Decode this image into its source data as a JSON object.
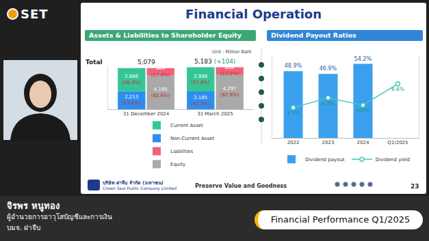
{
  "page": {
    "logo": "SET",
    "slide_title": "Financial Operation",
    "company_th": "บริษัท ฝาจีบ จำกัด (มหาชน)",
    "company_en": "Crown Seal Public Company Limited",
    "slogan": "Preserve Value and Goodness",
    "page_number": "23",
    "presenter_name": "จิรพร หนูทอง",
    "presenter_title": "ผู้อำนวยการอาวุโสบัญชีและการเงิน",
    "presenter_company": "บมจ. ฝาจีบ",
    "session": "Financial Performance Q1/2025"
  },
  "chart_data": [
    {
      "type": "bar",
      "title": "Assets & Liabilities to Shareholder Equity",
      "unit": "Unit : Million Baht",
      "total_label": "Total",
      "totals": [
        5079,
        5183
      ],
      "total_labels": [
        "5,079",
        "5,183"
      ],
      "change_label": "(+104)",
      "categories": [
        "31 December 2024",
        "31 March 2025"
      ],
      "stacks": [
        [
          {
            "name": "Current Asset",
            "color": "#36c597",
            "values": [
              2866,
              2998
            ],
            "value_labels": [
              "2,866",
              "2,998"
            ],
            "share_labels": [
              "(56.4%)",
              "(57.8%)"
            ]
          },
          {
            "name": "Non-Current Asset",
            "color": "#2e8ef0",
            "values": [
              2213,
              2185
            ],
            "value_labels": [
              "2,213",
              "2,185"
            ],
            "share_labels": [
              "(43.6%)",
              "(42.2%)"
            ]
          }
        ],
        [
          {
            "name": "Liabilities",
            "color": "#f0627a",
            "values": [
              884,
              886
            ],
            "value_labels": [
              "884",
              "886"
            ],
            "share_labels": [
              "(17.4%)",
              "(17.1%)"
            ]
          },
          {
            "name": "Equity",
            "color": "#a9a9a9",
            "values": [
              4195,
              4297
            ],
            "value_labels": [
              "4,195",
              "4,297"
            ],
            "share_labels": [
              "(82.6%)",
              "(82.9%)"
            ]
          }
        ]
      ],
      "stacked": true,
      "ylim": [
        0,
        5400
      ],
      "tick_labels": "x",
      "legend": "bottom",
      "data_labels": true,
      "grid": false
    },
    {
      "type": "bar",
      "title": "Dividend Payout Ratios",
      "categories": [
        "2022",
        "2023",
        "2024",
        "Q1/2025"
      ],
      "series": [
        {
          "name": "Dividend payout",
          "type": "bar",
          "color": "#3aa0ee",
          "values": [
            48.9,
            46.9,
            54.2,
            null
          ],
          "value_labels": [
            "48.9%",
            "46.9%",
            "54.2%",
            null
          ]
        },
        {
          "name": "Dividend yield",
          "type": "line",
          "axis": "y2",
          "color": "#4cc7b6",
          "marker": "circle",
          "values": [
            3.7,
            4.9,
            4.0,
            6.6
          ],
          "value_labels": [
            "3.7%",
            "4.9%",
            "4.0%",
            "6.6%"
          ]
        }
      ],
      "ylim": [
        0,
        60
      ],
      "y2lim": [
        0,
        10
      ],
      "tick_labels": "x",
      "legend": "bottom",
      "data_labels": true,
      "grid": false
    }
  ]
}
